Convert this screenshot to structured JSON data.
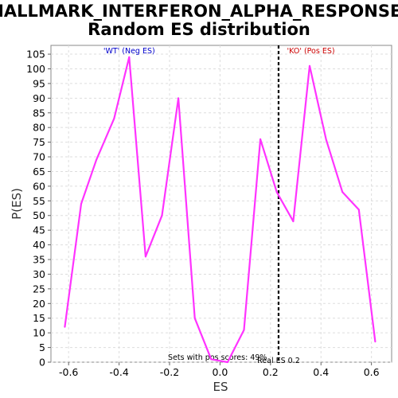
{
  "chart_data": {
    "type": "line",
    "title_line1": "HALLMARK_INTERFERON_ALPHA_RESPONSE:",
    "title_line2": "Random ES distribution",
    "xlabel": "ES",
    "ylabel": "P(ES)",
    "xlim": [
      -0.67,
      0.68
    ],
    "ylim": [
      0,
      108
    ],
    "x_ticks": [
      -0.6,
      -0.4,
      -0.2,
      0.0,
      0.2,
      0.4,
      0.6
    ],
    "x_tick_labels": [
      "-0.6",
      "-0.4",
      "-0.2",
      "0.0",
      "0.2",
      "0.4",
      "0.6"
    ],
    "y_ticks": [
      0,
      5,
      10,
      15,
      20,
      25,
      30,
      35,
      40,
      45,
      50,
      55,
      60,
      65,
      70,
      75,
      80,
      85,
      90,
      95,
      100,
      105
    ],
    "grid": true,
    "series": [
      {
        "color": "#ff33ff",
        "x": [
          -0.615,
          -0.55,
          -0.49,
          -0.42,
          -0.36,
          -0.295,
          -0.23,
          -0.165,
          -0.1,
          -0.035,
          0.03,
          0.095,
          0.16,
          0.225,
          0.29,
          0.355,
          0.42,
          0.485,
          0.55,
          0.615
        ],
        "y": [
          12,
          54,
          69,
          83,
          104,
          36,
          50,
          90,
          15,
          1,
          0,
          11,
          76,
          58,
          48,
          101,
          76,
          58,
          52,
          7
        ]
      }
    ],
    "real_es": {
      "x": 0.232,
      "label": "Real ES 0.2"
    },
    "annotations": {
      "neg_label": "'WT' (Neg ES)",
      "neg_color": "#0000cc",
      "pos_label": "'KO' (Pos ES)",
      "pos_color": "#cc0000",
      "sets_text": "Sets with pos scores: 49%"
    }
  }
}
